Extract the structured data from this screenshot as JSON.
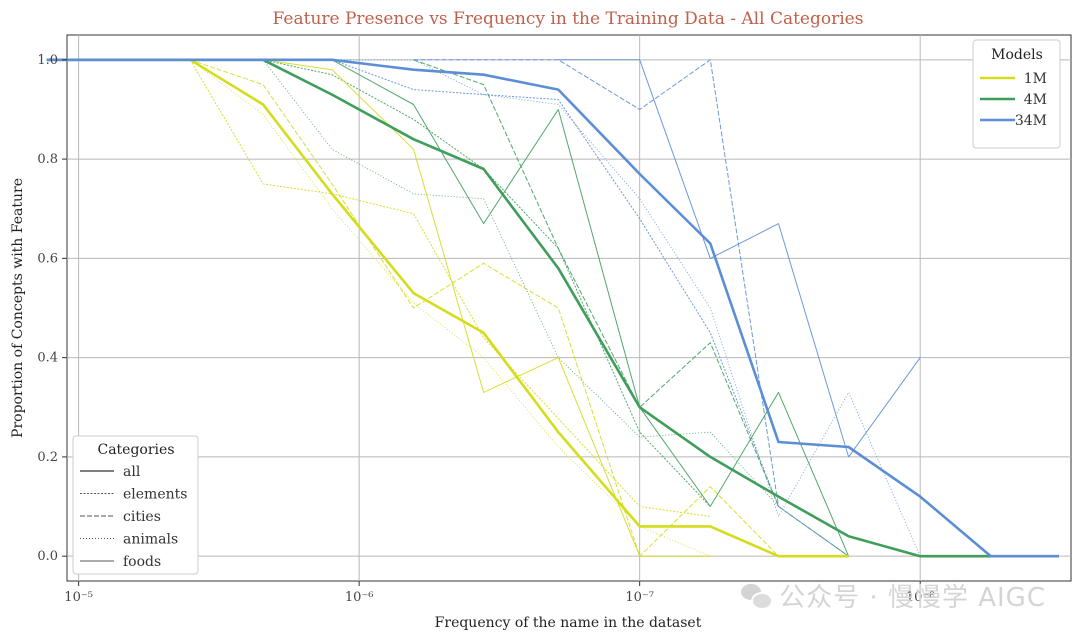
{
  "chart_data": {
    "type": "line",
    "title": "Feature Presence vs Frequency in the Training Data - All Categories",
    "xlabel": "Frequency of the name in the dataset",
    "ylabel": "Proportion of Concepts with Feature",
    "x_scale": "log",
    "x_reversed": true,
    "xlim": [
      1.1e-05,
      2.9e-09
    ],
    "ylim": [
      -0.05,
      1.05
    ],
    "grid": true,
    "x_ticks": [
      {
        "value": 1e-05,
        "label": "10⁻⁵"
      },
      {
        "value": 1e-06,
        "label": "10⁻⁶"
      },
      {
        "value": 1e-07,
        "label": "10⁻⁷"
      },
      {
        "value": 1e-08,
        "label": "10⁻⁸"
      }
    ],
    "y_ticks": [
      {
        "value": 0.0,
        "label": "0.0"
      },
      {
        "value": 0.2,
        "label": "0.2"
      },
      {
        "value": 0.4,
        "label": "0.4"
      },
      {
        "value": 0.6,
        "label": "0.6"
      },
      {
        "value": 0.8,
        "label": "0.8"
      },
      {
        "value": 1.0,
        "label": "1.0"
      }
    ],
    "models_legend": {
      "title": "Models",
      "position": "top-right",
      "entries": [
        {
          "name": "1M",
          "color": "#d4dc1c"
        },
        {
          "name": "4M",
          "color": "#3e9e5a"
        },
        {
          "name": "34M",
          "color": "#5b8ed6"
        }
      ]
    },
    "categories_legend": {
      "title": "Categories",
      "position": "bottom-left",
      "entries": [
        {
          "name": "all",
          "style": "solid-bold"
        },
        {
          "name": "elements",
          "style": "dotted"
        },
        {
          "name": "cities",
          "style": "dashed"
        },
        {
          "name": "animals",
          "style": "loose-dotted"
        },
        {
          "name": "foods",
          "style": "solid-thin"
        }
      ]
    },
    "series": [
      {
        "model": "1M",
        "category": "all",
        "x": [
          1.3e-05,
          4e-06,
          2.2e-06,
          1.25e-06,
          6.4e-07,
          3.6e-07,
          1.95e-07,
          1e-07,
          5.6e-08,
          3.2e-08,
          1.8e-08
        ],
        "y": [
          1.0,
          1.0,
          0.91,
          0.73,
          0.53,
          0.45,
          0.25,
          0.06,
          0.06,
          0.0,
          0.0
        ]
      },
      {
        "model": "4M",
        "category": "all",
        "x": [
          1.3e-05,
          4e-06,
          2.2e-06,
          1.25e-06,
          6.4e-07,
          3.6e-07,
          1.95e-07,
          1e-07,
          5.6e-08,
          3.2e-08,
          1.8e-08,
          1e-08,
          5.6e-09
        ],
        "y": [
          1.0,
          1.0,
          1.0,
          0.93,
          0.84,
          0.78,
          0.58,
          0.3,
          0.2,
          0.12,
          0.04,
          0.0,
          0.0
        ]
      },
      {
        "model": "34M",
        "category": "all",
        "x": [
          1.3e-05,
          4e-06,
          2.2e-06,
          1.25e-06,
          6.4e-07,
          3.6e-07,
          1.95e-07,
          1e-07,
          5.6e-08,
          3.2e-08,
          1.8e-08,
          1e-08,
          5.6e-09,
          3.2e-09
        ],
        "y": [
          1.0,
          1.0,
          1.0,
          1.0,
          0.98,
          0.97,
          0.94,
          0.77,
          0.63,
          0.23,
          0.22,
          0.12,
          0.0,
          0.0
        ]
      },
      {
        "model": "1M",
        "category": "elements",
        "x": [
          4e-06,
          2.2e-06,
          1.25e-06,
          6.4e-07,
          3.6e-07,
          1e-07,
          5.6e-08
        ],
        "y": [
          1.0,
          0.75,
          0.73,
          0.69,
          0.44,
          0.1,
          0.08
        ]
      },
      {
        "model": "4M",
        "category": "elements",
        "x": [
          2.2e-06,
          1.25e-06,
          6.4e-07,
          3.6e-07,
          1.95e-07,
          1e-07,
          5.6e-08
        ],
        "y": [
          1.0,
          0.97,
          0.88,
          0.78,
          0.62,
          0.25,
          0.1
        ]
      },
      {
        "model": "34M",
        "category": "elements",
        "x": [
          1.25e-06,
          6.4e-07,
          3.6e-07,
          1.95e-07,
          1e-07,
          5.6e-08,
          3.2e-08
        ],
        "y": [
          1.0,
          0.94,
          0.93,
          0.92,
          0.68,
          0.45,
          0.1
        ]
      },
      {
        "model": "1M",
        "category": "cities",
        "x": [
          4e-06,
          2.2e-06,
          1.25e-06,
          6.4e-07,
          3.6e-07,
          1.95e-07,
          1e-07,
          5.6e-08,
          3.2e-08
        ],
        "y": [
          1.0,
          0.95,
          0.75,
          0.5,
          0.59,
          0.5,
          0.0,
          0.14,
          0.0
        ]
      },
      {
        "model": "4M",
        "category": "cities",
        "x": [
          6.4e-07,
          3.6e-07,
          1.95e-07,
          1e-07,
          5.6e-08,
          3.2e-08,
          1.8e-08
        ],
        "y": [
          1.0,
          0.95,
          0.62,
          0.3,
          0.43,
          0.1,
          0.0
        ]
      },
      {
        "model": "34M",
        "category": "cities",
        "x": [
          6.4e-07,
          3.6e-07,
          1.95e-07,
          1e-07,
          5.6e-08,
          3.2e-08,
          1.8e-08
        ],
        "y": [
          1.0,
          1.0,
          1.0,
          0.9,
          1.0,
          0.1,
          0.0
        ]
      },
      {
        "model": "1M",
        "category": "animals",
        "x": [
          4e-06,
          2.2e-06,
          1.25e-06,
          6.4e-07,
          3.6e-07,
          1.95e-07,
          1e-07,
          5.6e-08
        ],
        "y": [
          1.0,
          0.89,
          0.7,
          0.51,
          0.4,
          0.22,
          0.06,
          0.0
        ]
      },
      {
        "model": "4M",
        "category": "animals",
        "x": [
          2.2e-06,
          1.25e-06,
          6.4e-07,
          3.6e-07,
          1.95e-07,
          1e-07,
          5.6e-08,
          3.2e-08
        ],
        "y": [
          1.0,
          0.82,
          0.73,
          0.72,
          0.4,
          0.24,
          0.25,
          0.1
        ]
      },
      {
        "model": "34M",
        "category": "animals",
        "x": [
          1.25e-06,
          6.4e-07,
          3.6e-07,
          1.95e-07,
          1e-07,
          5.6e-08,
          3.2e-08,
          1.8e-08,
          1e-08
        ],
        "y": [
          1.0,
          1.0,
          0.93,
          0.91,
          0.72,
          0.5,
          0.08,
          0.33,
          0.0
        ]
      },
      {
        "model": "1M",
        "category": "foods",
        "x": [
          2.2e-06,
          1.25e-06,
          6.4e-07,
          3.6e-07,
          1.95e-07,
          1e-07,
          5.6e-08
        ],
        "y": [
          1.0,
          0.98,
          0.82,
          0.33,
          0.4,
          0.0,
          0.0
        ]
      },
      {
        "model": "4M",
        "category": "foods",
        "x": [
          1.25e-06,
          6.4e-07,
          3.6e-07,
          1.95e-07,
          1e-07,
          5.6e-08,
          3.2e-08,
          1.8e-08
        ],
        "y": [
          1.0,
          0.91,
          0.67,
          0.9,
          0.3,
          0.1,
          0.33,
          0.0
        ]
      },
      {
        "model": "34M",
        "category": "foods",
        "x": [
          1.95e-07,
          1e-07,
          5.6e-08,
          3.2e-08,
          1.8e-08,
          1e-08
        ],
        "y": [
          1.0,
          1.0,
          0.6,
          0.67,
          0.2,
          0.4
        ]
      }
    ]
  },
  "watermark": {
    "text": "公众号 · 慢慢学 AIGC",
    "icon": "wechat-icon"
  }
}
